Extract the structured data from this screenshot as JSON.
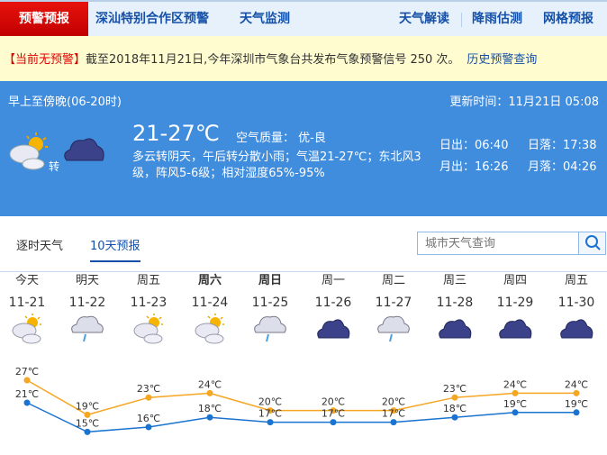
{
  "nav": {
    "active": "预警预报",
    "items": [
      "深汕特别合作区预警",
      "天气监测"
    ],
    "right": [
      "天气解读",
      "降雨估测",
      "网格预报"
    ]
  },
  "notice": {
    "warning": "【当前无预警】",
    "text": "截至2018年11月21日,今年深圳市气象台共发布气象预警信号 250 次。",
    "link": "历史预警查询"
  },
  "today": {
    "period": "早上至傍晚(06-20时)",
    "updated": "更新时间：11月21日 05:08",
    "icon_from": "partly-cloudy",
    "icon_to": "overcast",
    "turn": "转",
    "temp": "21-27℃",
    "aqi": "空气质量： 优-良",
    "desc": "多云转阴天，午后转分散小雨；气温21-27℃；东北风3级，阵风5-6级；相对湿度65%-95%",
    "sunrise": "日出：06:40",
    "sunset": "日落：17:38",
    "moonrise": "月出：16:26",
    "moonset": "月落：04:26"
  },
  "tabs": [
    "逐时天气",
    "10天预报"
  ],
  "active_tab": "10天预报",
  "search": {
    "placeholder": "城市天气查询",
    "icon": "search-icon"
  },
  "colors": {
    "high": "#f5a623",
    "low": "#1a73d0",
    "panel": "#408cdd",
    "accent": "#1550a8"
  },
  "days": [
    {
      "name": "今天",
      "date": "11-21",
      "icon": "partly-cloudy",
      "bold": false,
      "high": "27℃",
      "low": "21℃"
    },
    {
      "name": "明天",
      "date": "11-22",
      "icon": "light-rain",
      "bold": false,
      "high": "19℃",
      "low": "15℃"
    },
    {
      "name": "周五",
      "date": "11-23",
      "icon": "partly-cloudy",
      "bold": false,
      "high": "23℃",
      "low": "16℃"
    },
    {
      "name": "周六",
      "date": "11-24",
      "icon": "partly-cloudy",
      "bold": true,
      "high": "24℃",
      "low": "18℃"
    },
    {
      "name": "周日",
      "date": "11-25",
      "icon": "light-rain",
      "bold": true,
      "high": "20℃",
      "low": "17℃"
    },
    {
      "name": "周一",
      "date": "11-26",
      "icon": "overcast",
      "bold": false,
      "high": "20℃",
      "low": "17℃"
    },
    {
      "name": "周二",
      "date": "11-27",
      "icon": "light-rain",
      "bold": false,
      "high": "20℃",
      "low": "17℃"
    },
    {
      "name": "周三",
      "date": "11-28",
      "icon": "overcast",
      "bold": false,
      "high": "23℃",
      "low": "18℃"
    },
    {
      "name": "周四",
      "date": "11-29",
      "icon": "overcast",
      "bold": false,
      "high": "24℃",
      "low": "19℃"
    },
    {
      "name": "周五",
      "date": "11-30",
      "icon": "overcast",
      "bold": false,
      "high": "24℃",
      "low": "19℃"
    }
  ],
  "chart_data": {
    "type": "line",
    "categories": [
      "11-21",
      "11-22",
      "11-23",
      "11-24",
      "11-25",
      "11-26",
      "11-27",
      "11-28",
      "11-29",
      "11-30"
    ],
    "series": [
      {
        "values": [
          27,
          19,
          23,
          24,
          20,
          20,
          20,
          23,
          24,
          24
        ],
        "color": "#f5a623"
      },
      {
        "values": [
          21,
          15,
          16,
          18,
          17,
          17,
          17,
          18,
          19,
          19
        ],
        "color": "#1a73d0"
      }
    ],
    "unit": "℃"
  }
}
